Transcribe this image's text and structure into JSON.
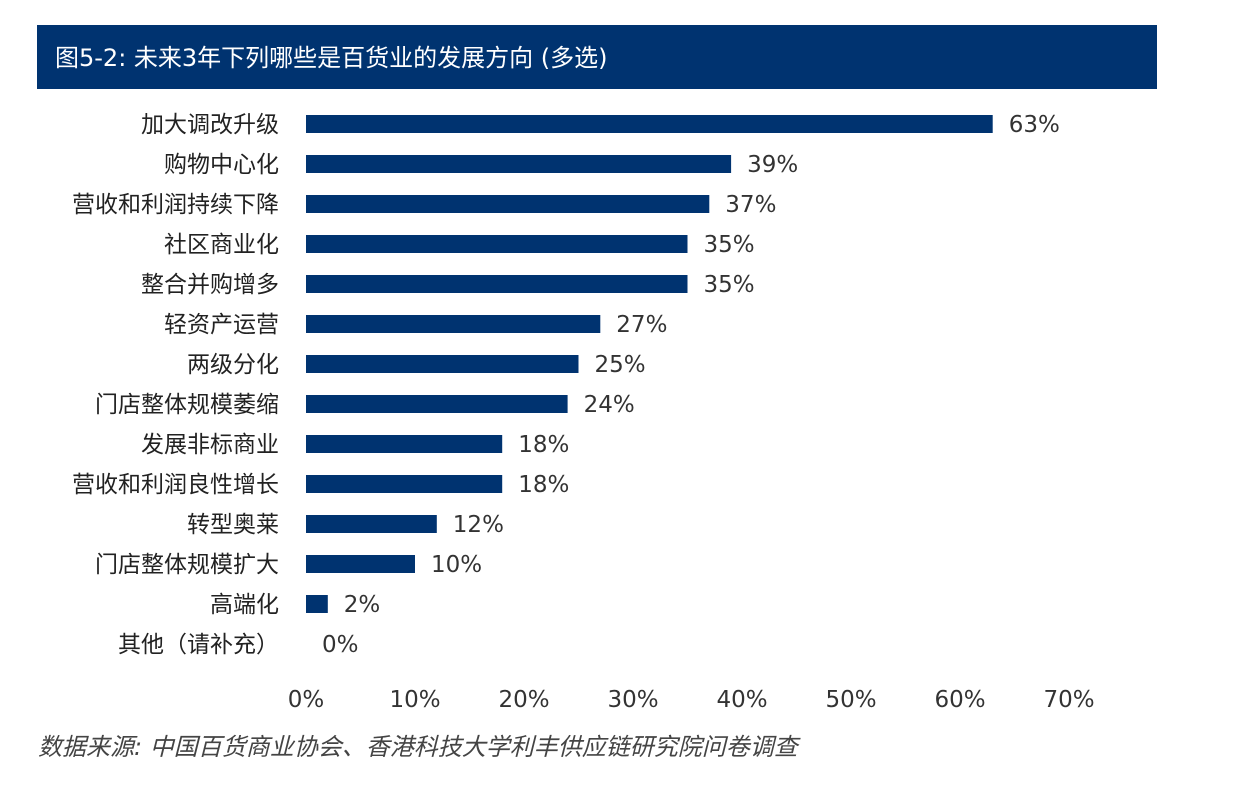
{
  "title": "图5-2: 未来3年下列哪些是百货业的发展方向 (多选)",
  "source": "数据来源: 中国百货商业协会、香港科技大学利丰供应链研究院问卷调查",
  "colors": {
    "bar": "#003370",
    "header": "#003370"
  },
  "chart_data": {
    "type": "bar",
    "orientation": "horizontal",
    "categories": [
      "加大调改升级",
      "购物中心化",
      "营收和利润持续下降",
      "社区商业化",
      "整合并购增多",
      "轻资产运营",
      "两级分化",
      "门店整体规模萎缩",
      "发展非标商业",
      "营收和利润良性增长",
      "转型奥莱",
      "门店整体规模扩大",
      "高端化",
      "其他（请补充）"
    ],
    "values": [
      63,
      39,
      37,
      35,
      35,
      27,
      25,
      24,
      18,
      18,
      12,
      10,
      2,
      0
    ],
    "value_labels": [
      "63%",
      "39%",
      "37%",
      "35%",
      "35%",
      "27%",
      "25%",
      "24%",
      "18%",
      "18%",
      "12%",
      "10%",
      "2%",
      "0%"
    ],
    "xlim": [
      0,
      70
    ],
    "xticks": [
      "0%",
      "10%",
      "20%",
      "30%",
      "40%",
      "50%",
      "60%",
      "70%"
    ],
    "grid": false,
    "legend": "none"
  }
}
